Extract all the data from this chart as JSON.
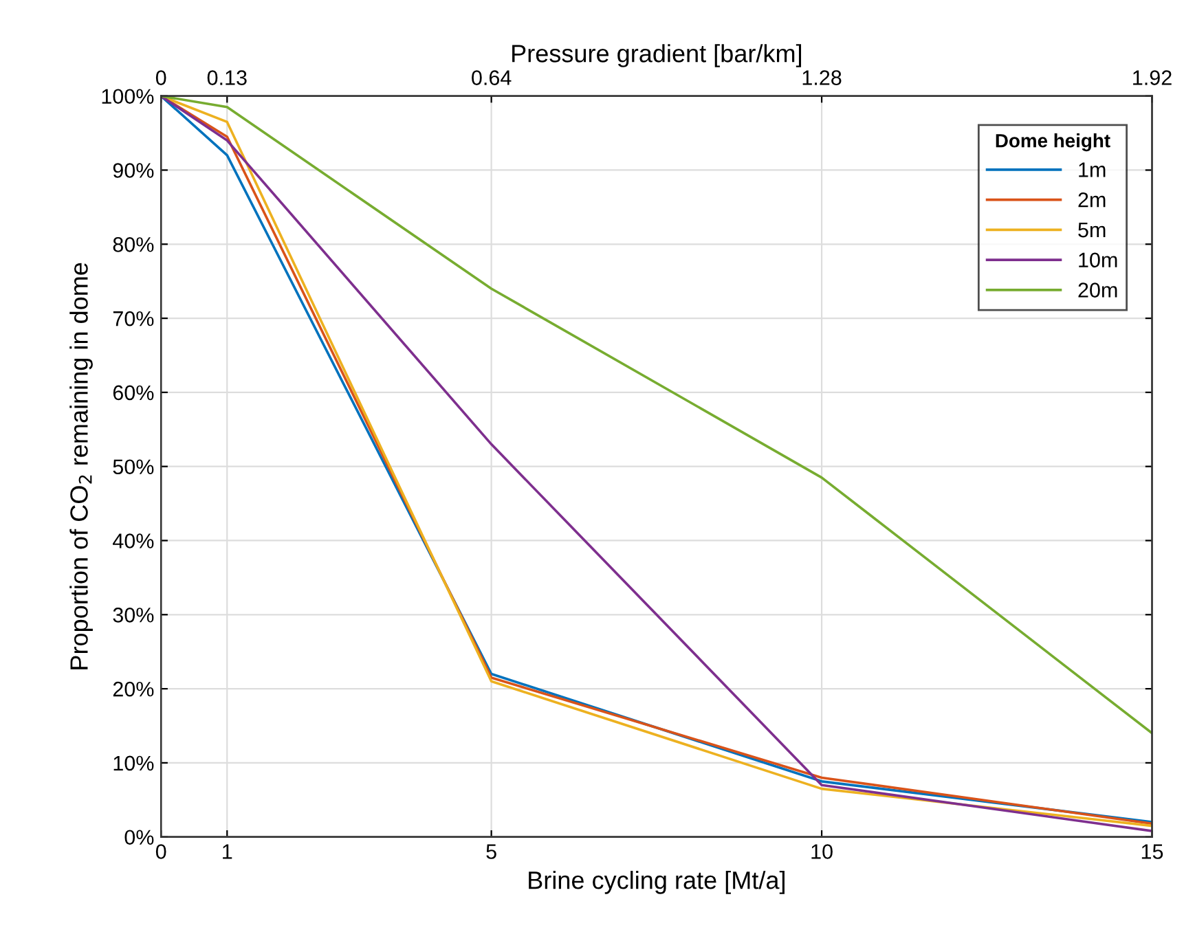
{
  "chart_data": {
    "type": "line",
    "xlabel": "Brine cycling rate [Mt/a]",
    "ylabel": "Proportion of CO$_{2}$ remaining in dome",
    "x2label": "Pressure gradient [bar/km]",
    "legend_title": "Dome height",
    "legend": "top right",
    "grid": true,
    "x": [
      0,
      1,
      5,
      10,
      15
    ],
    "xlim": [
      0,
      15
    ],
    "xticks": [
      0,
      1,
      5,
      10,
      15
    ],
    "x2lim": [
      0,
      1.92
    ],
    "x2ticks": [
      0,
      {
        "value": 0.128,
        "label": "0.13"
      },
      0.64,
      1.28,
      1.92
    ],
    "ylim": [
      0,
      100
    ],
    "yticks": [
      {
        "value": 0,
        "label": "0%"
      },
      {
        "value": 10,
        "label": "10%"
      },
      {
        "value": 20,
        "label": "20%"
      },
      {
        "value": 30,
        "label": "30%"
      },
      {
        "value": 40,
        "label": "40%"
      },
      {
        "value": 50,
        "label": "50%"
      },
      {
        "value": 60,
        "label": "60%"
      },
      {
        "value": 70,
        "label": "70%"
      },
      {
        "value": 80,
        "label": "80%"
      },
      {
        "value": 90,
        "label": "90%"
      },
      {
        "value": 100,
        "label": "100%"
      }
    ],
    "series": [
      {
        "name": "1m",
        "color": "#0072bd",
        "values": [
          100,
          92,
          22,
          7.5,
          2
        ]
      },
      {
        "name": "2m",
        "color": "#d95319",
        "values": [
          100,
          94.5,
          21.5,
          8,
          1.8
        ]
      },
      {
        "name": "5m",
        "color": "#edb120",
        "values": [
          100,
          96.5,
          21,
          6.5,
          1.5
        ]
      },
      {
        "name": "10m",
        "color": "#7e2f8e",
        "values": [
          100,
          94,
          53,
          7,
          0.8
        ]
      },
      {
        "name": "20m",
        "color": "#77ac30",
        "values": [
          100,
          98.5,
          74,
          48.5,
          14
        ]
      }
    ]
  }
}
